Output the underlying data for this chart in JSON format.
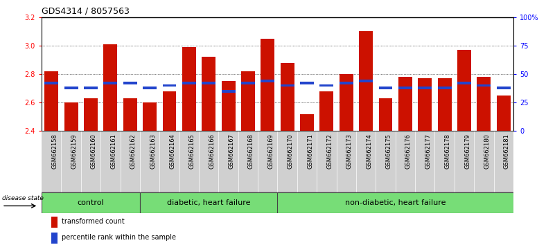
{
  "title": "GDS4314 / 8057563",
  "samples": [
    "GSM662158",
    "GSM662159",
    "GSM662160",
    "GSM662161",
    "GSM662162",
    "GSM662163",
    "GSM662164",
    "GSM662165",
    "GSM662166",
    "GSM662167",
    "GSM662168",
    "GSM662169",
    "GSM662170",
    "GSM662171",
    "GSM662172",
    "GSM662173",
    "GSM662174",
    "GSM662175",
    "GSM662176",
    "GSM662177",
    "GSM662178",
    "GSM662179",
    "GSM662180",
    "GSM662181"
  ],
  "red_values": [
    2.82,
    2.6,
    2.63,
    3.01,
    2.63,
    2.6,
    2.68,
    2.99,
    2.92,
    2.75,
    2.82,
    3.05,
    2.88,
    2.52,
    2.68,
    2.8,
    3.1,
    2.63,
    2.78,
    2.77,
    2.77,
    2.97,
    2.78,
    2.65
  ],
  "blue_pct": [
    42,
    38,
    38,
    42,
    42,
    38,
    40,
    42,
    42,
    35,
    42,
    44,
    40,
    42,
    40,
    42,
    44,
    38,
    38,
    38,
    38,
    42,
    40,
    38
  ],
  "groups": [
    {
      "label": "control",
      "start": 0,
      "end": 5
    },
    {
      "label": "diabetic, heart failure",
      "start": 5,
      "end": 12
    },
    {
      "label": "non-diabetic, heart failure",
      "start": 12,
      "end": 24
    }
  ],
  "ymin": 2.4,
  "ymax": 3.2,
  "yticks": [
    2.4,
    2.6,
    2.8,
    3.0,
    3.2
  ],
  "right_yticks_pct": [
    0,
    25,
    50,
    75,
    100
  ],
  "right_ylabels": [
    "0",
    "25",
    "50",
    "75",
    "100%"
  ],
  "bar_color": "#cc1100",
  "blue_color": "#2244cc",
  "group_color": "#77dd77",
  "xlabel_bg": "#d0d0d0",
  "title_fontsize": 9,
  "tick_fontsize": 7,
  "xlabel_fontsize": 6,
  "group_label_fontsize": 8
}
